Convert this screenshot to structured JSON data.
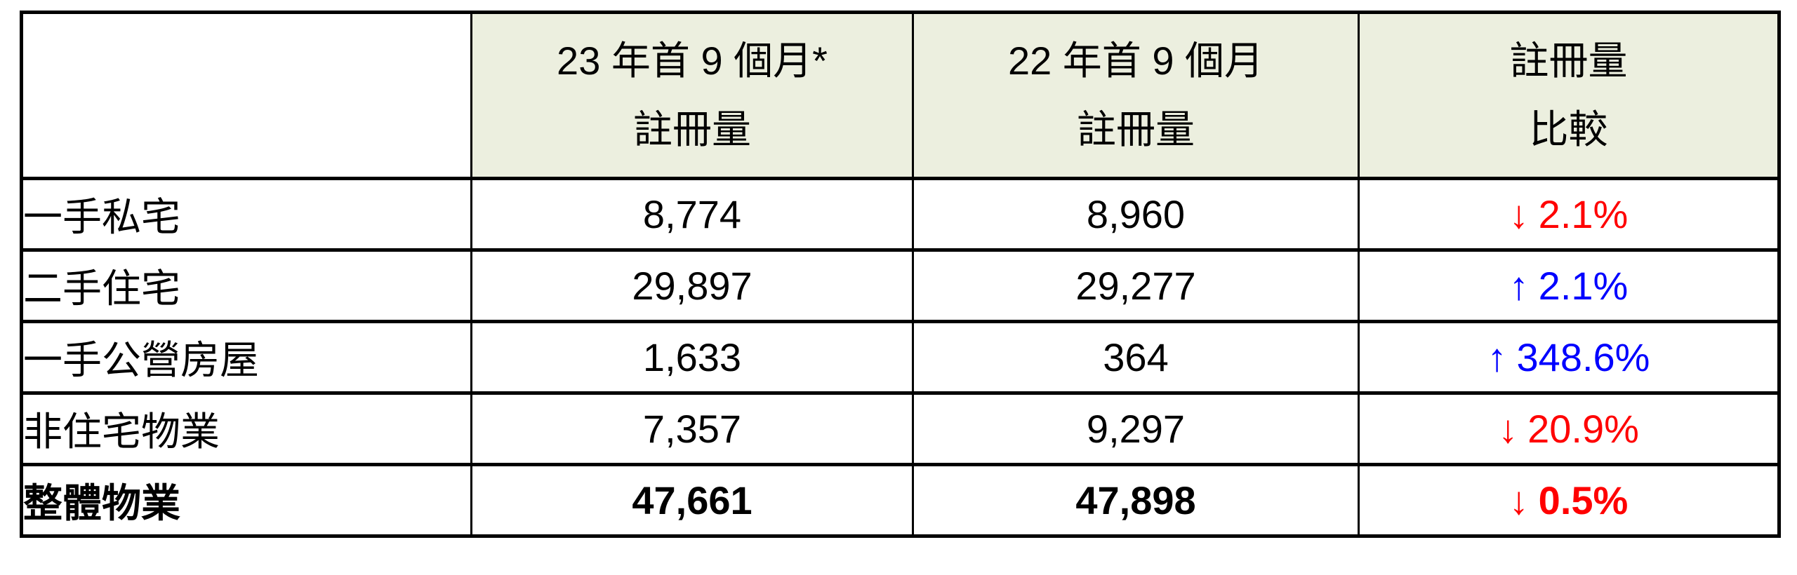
{
  "table": {
    "header": {
      "col_category": {
        "line1": "",
        "line2": ""
      },
      "col_2023": {
        "line1": "23 年首 9 個月*",
        "line2": "註冊量"
      },
      "col_2022": {
        "line1": "22 年首 9 個月",
        "line2": "註冊量"
      },
      "col_change": {
        "line1": "註冊量",
        "line2": "比較"
      }
    },
    "rows": [
      {
        "label": "一手私宅",
        "val_2023": "8,774",
        "val_2022": "8,960",
        "change_arrow": "↓",
        "change_value": "2.1%",
        "direction": "down",
        "bold": false
      },
      {
        "label": "二手住宅",
        "val_2023": "29,897",
        "val_2022": "29,277",
        "change_arrow": "↑",
        "change_value": "2.1%",
        "direction": "up",
        "bold": false
      },
      {
        "label": "一手公營房屋",
        "val_2023": "1,633",
        "val_2022": "364",
        "change_arrow": "↑",
        "change_value": "348.6%",
        "direction": "up",
        "bold": false
      },
      {
        "label": "非住宅物業",
        "val_2023": "7,357",
        "val_2022": "9,297",
        "change_arrow": "↓",
        "change_value": "20.9%",
        "direction": "down",
        "bold": false
      },
      {
        "label": "整體物業",
        "val_2023": "47,661",
        "val_2022": "47,898",
        "change_arrow": "↓",
        "change_value": "0.5%",
        "direction": "down",
        "bold": true
      }
    ],
    "colors": {
      "header_bg": "#ECEFDF",
      "up": "#0000FF",
      "down": "#FF0000",
      "border": "#000000"
    }
  }
}
